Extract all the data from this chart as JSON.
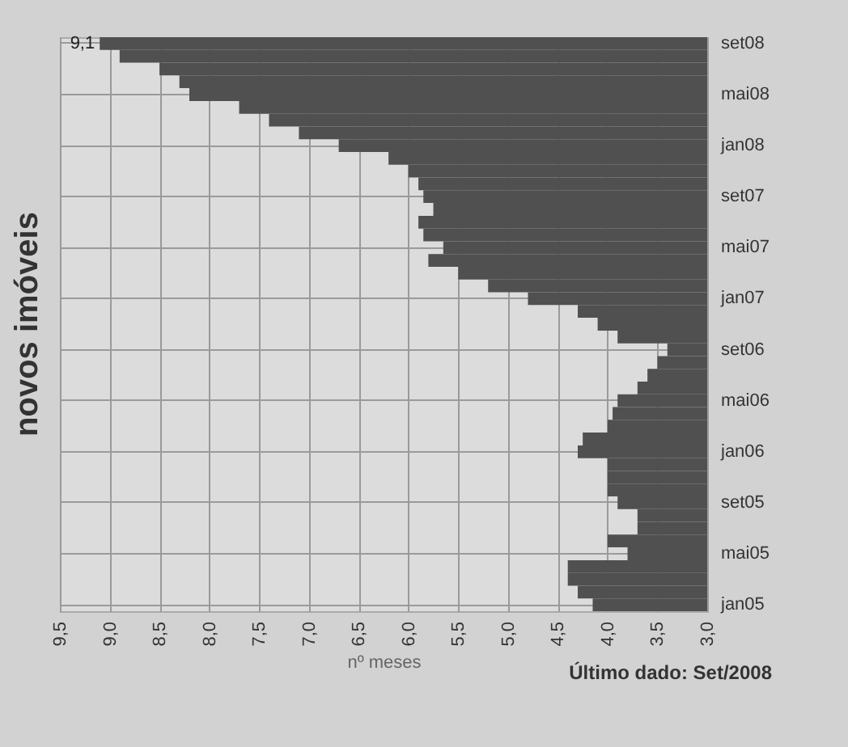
{
  "chart_data": {
    "type": "bar",
    "orientation": "horizontal",
    "title": "novos imóveis",
    "xlabel": "nº meses",
    "annotations": [
      "Último dado: Set/2008"
    ],
    "categories": [
      "set08",
      null,
      null,
      null,
      "mai08",
      null,
      null,
      null,
      "jan08",
      null,
      null,
      null,
      "set07",
      null,
      null,
      null,
      "mai07",
      null,
      null,
      null,
      "jan07",
      null,
      null,
      null,
      "set06",
      null,
      null,
      null,
      "mai06",
      null,
      null,
      null,
      "jan06",
      null,
      null,
      null,
      "set05",
      null,
      null,
      null,
      "mai05",
      null,
      null,
      null,
      "jan05"
    ],
    "values": [
      9.1,
      8.9,
      8.5,
      8.3,
      8.2,
      7.7,
      7.4,
      7.1,
      6.7,
      6.2,
      6.0,
      5.9,
      5.85,
      5.75,
      5.9,
      5.85,
      5.65,
      5.8,
      5.5,
      5.2,
      4.8,
      4.3,
      4.1,
      3.9,
      3.4,
      3.5,
      3.6,
      3.7,
      3.9,
      3.95,
      4.0,
      4.25,
      4.3,
      4.0,
      4.0,
      4.0,
      3.9,
      3.7,
      3.7,
      4.0,
      3.8,
      4.4,
      4.4,
      4.3,
      4.15
    ],
    "value_labels": [
      "9,1",
      null,
      null,
      null,
      null,
      null,
      null,
      null,
      null,
      null,
      null,
      null,
      null,
      null,
      null,
      null,
      null,
      null,
      null,
      null,
      null,
      null,
      null,
      null,
      null,
      null,
      null,
      null,
      null,
      null,
      null,
      null,
      null,
      null,
      null,
      null,
      null,
      null,
      null,
      null,
      null,
      null,
      null,
      null,
      null
    ],
    "color": "#505050",
    "xlim": [
      9.5,
      3.0
    ],
    "xticks": [
      {
        "value": 9.5,
        "label": "9,5"
      },
      {
        "value": 9.0,
        "label": "9,0"
      },
      {
        "value": 8.5,
        "label": "8,5"
      },
      {
        "value": 8.0,
        "label": "8,0"
      },
      {
        "value": 7.5,
        "label": "7,5"
      },
      {
        "value": 7.0,
        "label": "7,0"
      },
      {
        "value": 6.5,
        "label": "6,5"
      },
      {
        "value": 6.0,
        "label": "6,0"
      },
      {
        "value": 5.5,
        "label": "5,5"
      },
      {
        "value": 5.0,
        "label": "5,0"
      },
      {
        "value": 4.5,
        "label": "4,5"
      },
      {
        "value": 4.0,
        "label": "4,0"
      },
      {
        "value": 3.5,
        "label": "3,5"
      },
      {
        "value": 3.0,
        "label": "3,0"
      }
    ],
    "grid": true
  }
}
